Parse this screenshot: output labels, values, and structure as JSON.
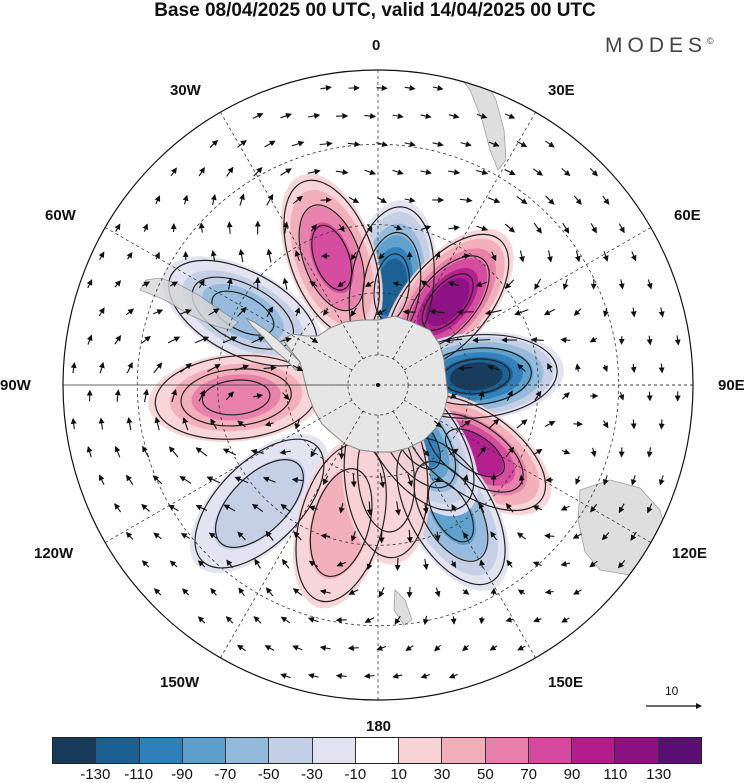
{
  "header": {
    "title": "Base 08/04/2025 00 UTC, valid 14/04/2025 00 UTC",
    "brand": "MODES",
    "brand_mark": "©"
  },
  "map": {
    "projection": "south-polar-stereographic",
    "longitude_labels": [
      "0",
      "30E",
      "60E",
      "90E",
      "120E",
      "150E",
      "180",
      "150W",
      "120W",
      "90W",
      "60W",
      "30W"
    ],
    "reference_vector_label": "10",
    "colors": {
      "land": "#e6e6e6",
      "coast": "#888888",
      "grid": "#333333",
      "vector": "#111111"
    },
    "anomaly_centers": [
      {
        "lon": 8,
        "lat": -58,
        "value": -120
      },
      {
        "lon": 40,
        "lat": -55,
        "value": 125
      },
      {
        "lon": 85,
        "lat": -58,
        "value": -135
      },
      {
        "lon": 125,
        "lat": -52,
        "value": 100
      },
      {
        "lon": 150,
        "lat": -44,
        "value": -80
      },
      {
        "lon": 145,
        "lat": -68,
        "value": -90
      },
      {
        "lon": -20,
        "lat": -47,
        "value": 80
      },
      {
        "lon": -62,
        "lat": -42,
        "value": -60
      },
      {
        "lon": -95,
        "lat": -45,
        "value": 65
      },
      {
        "lon": -135,
        "lat": -38,
        "value": -30
      },
      {
        "lon": -165,
        "lat": -45,
        "value": 30
      },
      {
        "lon": 175,
        "lat": -60,
        "value": 25
      }
    ]
  },
  "colorbar": {
    "labels": [
      "-130",
      "-110",
      "-90",
      "-70",
      "-50",
      "-30",
      "-10",
      "10",
      "30",
      "50",
      "70",
      "90",
      "110",
      "130"
    ],
    "colors": [
      "#183a5a",
      "#1c5f92",
      "#2f7fb8",
      "#5d9fcc",
      "#93b9dc",
      "#c3cfe5",
      "#e2e2f0",
      "#ffffff",
      "#f8d3d6",
      "#f2aeb8",
      "#e77fab",
      "#d54a9f",
      "#b21d8e",
      "#8b1283",
      "#5b0f73"
    ]
  }
}
